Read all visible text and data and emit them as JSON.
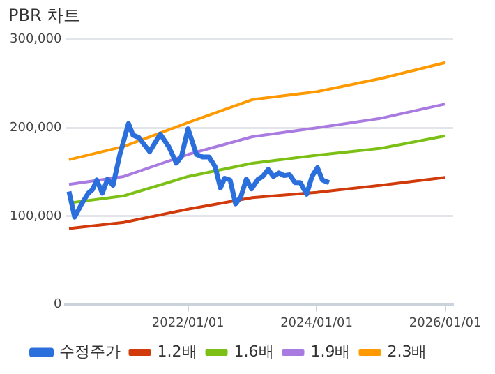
{
  "chart_data": {
    "type": "line",
    "title": "PBR 차트",
    "xlim": [
      "2020-02-07",
      "2026-02-15"
    ],
    "xticks": [
      {
        "value": "2022-01-01",
        "label": "2022/01/01"
      },
      {
        "value": "2024-01-01",
        "label": "2024/01/01"
      },
      {
        "value": "2026-01-01",
        "label": "2026/01/01"
      }
    ],
    "ylim": [
      0,
      300000
    ],
    "yticks": [
      {
        "value": 0,
        "label": "0"
      },
      {
        "value": 100000,
        "label": "100,000"
      },
      {
        "value": 200000,
        "label": "200,000"
      },
      {
        "value": 300000,
        "label": "300,000"
      }
    ],
    "grid": "y",
    "legend": "bottom",
    "series": [
      {
        "name": "수정주가",
        "color": "#2a6fdb",
        "x": [
          "2020-02-25",
          "2020-03-28",
          "2020-05-07",
          "2020-06-13",
          "2020-07-07",
          "2020-08-01",
          "2020-09-01",
          "2020-10-01",
          "2020-11-01",
          "2020-12-10",
          "2021-01-28",
          "2021-02-22",
          "2021-03-28",
          "2021-05-28",
          "2021-07-27",
          "2021-09-13",
          "2021-10-27",
          "2021-11-25",
          "2022-01-01",
          "2022-02-18",
          "2022-03-25",
          "2022-05-01",
          "2022-06-04",
          "2022-07-04",
          "2022-07-28",
          "2022-08-28",
          "2022-09-28",
          "2022-10-28",
          "2022-11-28",
          "2022-12-28",
          "2023-02-03",
          "2023-03-01",
          "2023-04-01",
          "2023-05-01",
          "2023-06-01",
          "2023-07-01",
          "2023-08-01",
          "2023-09-01",
          "2023-10-01",
          "2023-11-06",
          "2023-12-06",
          "2024-01-06",
          "2024-02-03",
          "2024-03-12"
        ],
        "values": [
          128000,
          99000,
          114000,
          126000,
          130000,
          141000,
          126000,
          142000,
          135000,
          170000,
          205000,
          192000,
          189000,
          173000,
          193000,
          179000,
          160000,
          168000,
          199000,
          170000,
          167000,
          167000,
          156000,
          132000,
          143000,
          141000,
          114000,
          122000,
          142000,
          131000,
          142000,
          145000,
          153000,
          145000,
          149000,
          146000,
          147000,
          138000,
          138000,
          125000,
          145000,
          155000,
          141000,
          138000
        ]
      },
      {
        "name": "1.2배",
        "color": "#d13b0c",
        "x": [
          "2020-02-25",
          "2021-01-01",
          "2022-01-01",
          "2023-01-01",
          "2024-01-01",
          "2025-01-01",
          "2026-01-01"
        ],
        "values": [
          86000,
          93000,
          108000,
          121000,
          127000,
          135000,
          144000
        ]
      },
      {
        "name": "1.6배",
        "color": "#7cc016",
        "x": [
          "2020-02-25",
          "2021-01-01",
          "2022-01-01",
          "2023-01-01",
          "2024-01-01",
          "2025-01-01",
          "2026-01-01"
        ],
        "values": [
          115000,
          123000,
          145000,
          160000,
          169000,
          177000,
          191000
        ]
      },
      {
        "name": "1.9배",
        "color": "#a97ae0",
        "x": [
          "2020-02-25",
          "2021-01-01",
          "2022-01-01",
          "2023-01-01",
          "2024-01-01",
          "2025-01-01",
          "2026-01-01"
        ],
        "values": [
          136000,
          145000,
          170000,
          190000,
          200000,
          211000,
          227000
        ]
      },
      {
        "name": "2.3배",
        "color": "#ff9900",
        "x": [
          "2020-02-25",
          "2021-01-01",
          "2022-01-01",
          "2023-01-01",
          "2024-01-01",
          "2025-01-01",
          "2026-01-01"
        ],
        "values": [
          164000,
          179000,
          206000,
          232000,
          241000,
          256000,
          274000
        ]
      }
    ]
  }
}
